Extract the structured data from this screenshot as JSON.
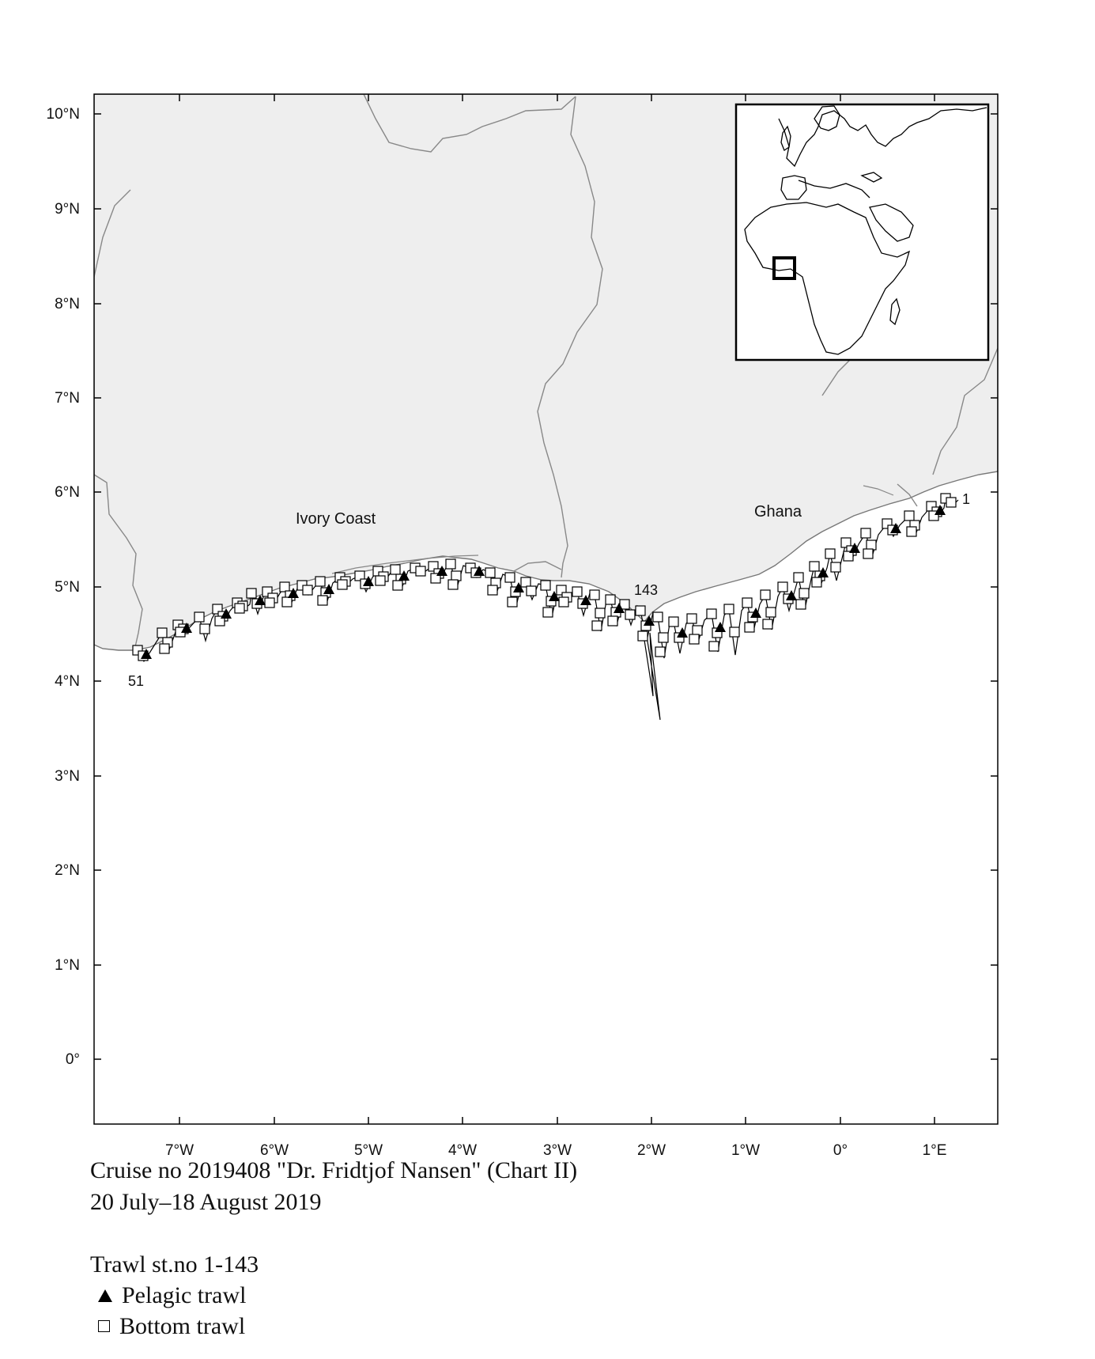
{
  "map": {
    "lat_labels": [
      "10°N",
      "9°N",
      "8°N",
      "7°N",
      "6°N",
      "5°N",
      "4°N",
      "3°N",
      "2°N",
      "1°N",
      "0°"
    ],
    "lon_labels": [
      "7°W",
      "6°W",
      "5°W",
      "4°W",
      "3°W",
      "2°W",
      "1°W",
      "0°",
      "1°E"
    ],
    "countries": [
      "Ivory Coast",
      "Ghana"
    ],
    "station_labels": [
      "1",
      "143",
      "51"
    ],
    "colors": {
      "land": "#eeeeee",
      "border": "#888888",
      "track": "#000000"
    }
  },
  "caption": {
    "line1": "Cruise no 2019408  \"Dr. Fridtjof Nansen\" (Chart II)",
    "line2": "20 July–18 August 2019"
  },
  "legend": {
    "title": "Trawl st.no 1-143",
    "pelagic": "Pelagic trawl",
    "bottom": "Bottom trawl",
    "pelagic_icon": "filled-triangle",
    "bottom_icon": "open-square"
  }
}
